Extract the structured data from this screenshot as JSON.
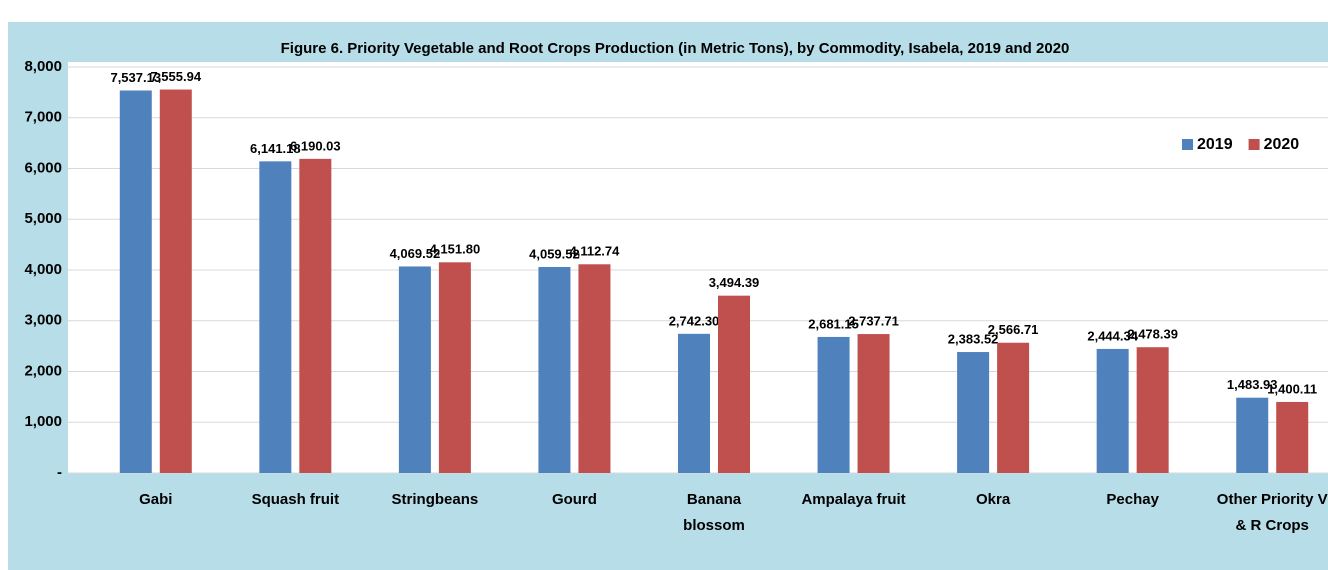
{
  "chart_data": {
    "type": "bar",
    "title": "Figure 6. Priority Vegetable and Root Crops Production (in Metric Tons), by Commodity, Isabela, 2019 and 2020",
    "categories": [
      "Gabi",
      "Squash fruit",
      "Stringbeans",
      "Gourd",
      "Banana blossom",
      "Ampalaya fruit",
      "Okra",
      "Pechay",
      "Other Priority V & R Crops"
    ],
    "series": [
      {
        "name": "2019",
        "color": "#4f81bd",
        "values": [
          7537.13,
          6141.18,
          4069.52,
          4059.52,
          2742.3,
          2681.15,
          2383.52,
          2444.34,
          1483.93
        ],
        "value_labels": [
          "7,537.13",
          "6,141.18",
          "4,069.52",
          "4,059.52",
          "2,742.30",
          "2,681.15",
          "2,383.52",
          "2,444.34",
          "1,483.93"
        ]
      },
      {
        "name": "2020",
        "color": "#c0504d",
        "values": [
          7555.94,
          6190.03,
          4151.8,
          4112.74,
          3494.39,
          2737.71,
          2566.71,
          2478.39,
          1400.11
        ],
        "value_labels": [
          "7,555.94",
          "6,190.03",
          "4,151.80",
          "4,112.74",
          "3,494.39",
          "2,737.71",
          "2,566.71",
          "2,478.39",
          "1,400.11"
        ]
      }
    ],
    "ylim": [
      0,
      8000
    ],
    "yticks": [
      {
        "value": 0,
        "label": "-"
      },
      {
        "value": 1000,
        "label": "1,000"
      },
      {
        "value": 2000,
        "label": "2,000"
      },
      {
        "value": 3000,
        "label": "3,000"
      },
      {
        "value": 4000,
        "label": "4,000"
      },
      {
        "value": 5000,
        "label": "5,000"
      },
      {
        "value": 6000,
        "label": "6,000"
      },
      {
        "value": 7000,
        "label": "7,000"
      },
      {
        "value": 8000,
        "label": "8,000"
      }
    ],
    "grid": true,
    "legend": "top-right"
  }
}
